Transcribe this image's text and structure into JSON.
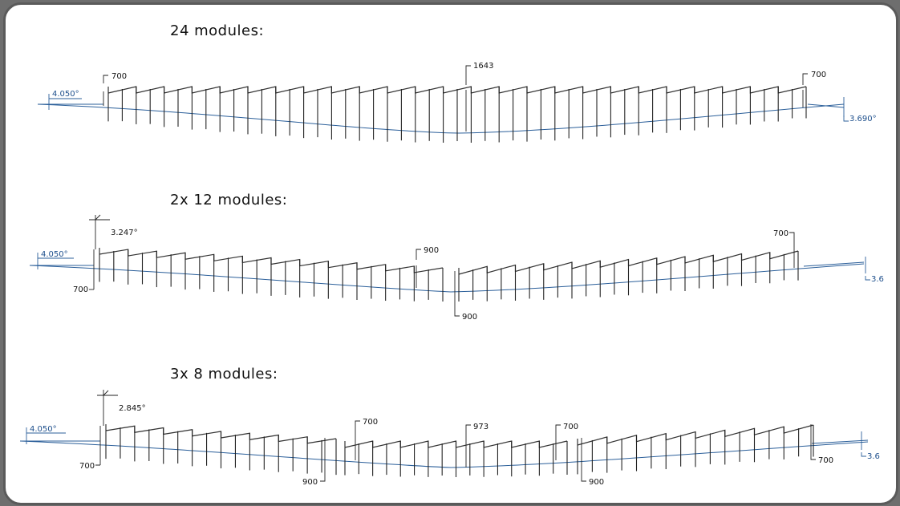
{
  "sections": [
    {
      "title": "24 modules:",
      "ground_angle_left": "4.050°",
      "ground_angle_right": "3.690°",
      "dims": [
        "700",
        "1643",
        "700"
      ]
    },
    {
      "title": "2x 12 modules:",
      "ground_angle_left": "4.050°",
      "ground_angle_right": "3.6",
      "tilt_angle": "3.247°",
      "dims": [
        "700",
        "900",
        "900",
        "700"
      ]
    },
    {
      "title": "3x 8 modules:",
      "ground_angle_left": "4.050°",
      "ground_angle_right": "3.6",
      "tilt_angle": "2.845°",
      "dims": [
        "700",
        "900",
        "700",
        "973",
        "700",
        "900",
        "700"
      ]
    }
  ]
}
